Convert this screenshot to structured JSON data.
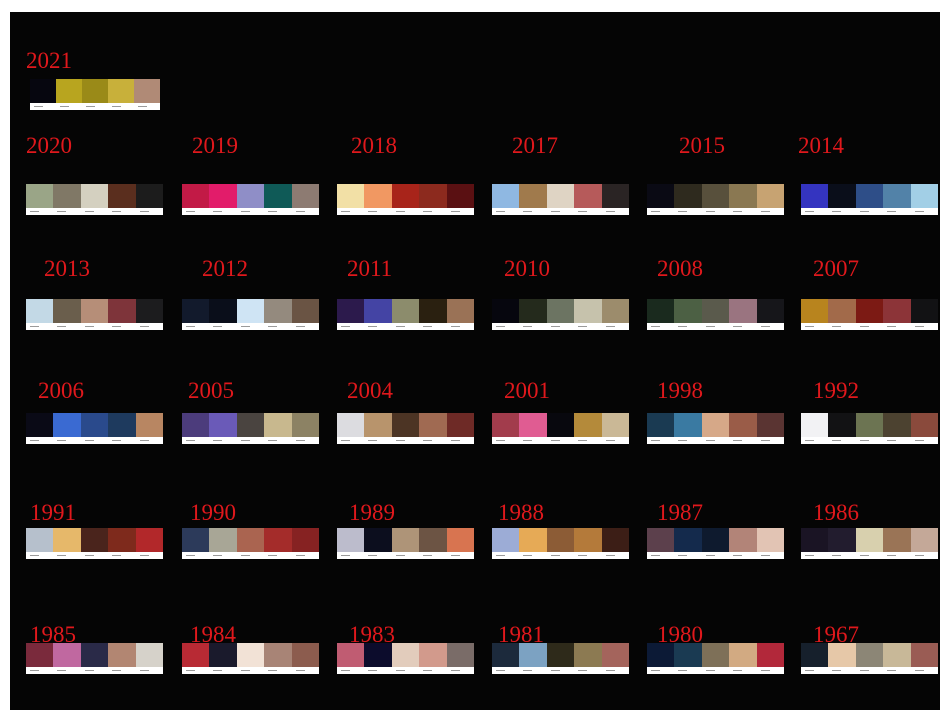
{
  "palettes": [
    {
      "year": "2021",
      "colors": [
        "#06060f",
        "#b8a51f",
        "#9a8a18",
        "#c8b03a",
        "#b08a76"
      ]
    },
    {
      "year": "2020",
      "colors": [
        "#9aa587",
        "#807866",
        "#d4d0c0",
        "#5a2e1e",
        "#1c1c1c"
      ]
    },
    {
      "year": "2019",
      "colors": [
        "#c21a46",
        "#e21c6a",
        "#8f8ec7",
        "#0f5a57",
        "#8d7b72"
      ]
    },
    {
      "year": "2018",
      "colors": [
        "#f2e0a6",
        "#f19862",
        "#a8241a",
        "#8c2a1e",
        "#5a1012"
      ]
    },
    {
      "year": "2017",
      "colors": [
        "#8fb8e2",
        "#a07a4c",
        "#dfd4c4",
        "#b65a5a",
        "#2a2424"
      ]
    },
    {
      "year": "2015",
      "colors": [
        "#0a0a14",
        "#2e2a1e",
        "#58503c",
        "#8a7852",
        "#c7a372"
      ]
    },
    {
      "year": "2014",
      "colors": [
        "#3434c0",
        "#0a0e1a",
        "#2e4e88",
        "#5282a8",
        "#a2cfe6"
      ]
    },
    {
      "year": "2013",
      "colors": [
        "#c3d9e6",
        "#6a5e4c",
        "#b68e78",
        "#7e343a",
        "#1c1c1e"
      ]
    },
    {
      "year": "2012",
      "colors": [
        "#121a2c",
        "#0a0e1a",
        "#cfe4f4",
        "#948a7e",
        "#6a5444"
      ]
    },
    {
      "year": "2011",
      "colors": [
        "#2c1a4c",
        "#4444a4",
        "#8c8c6c",
        "#2a2010",
        "#9a7256"
      ]
    },
    {
      "year": "2010",
      "colors": [
        "#06060e",
        "#242a1c",
        "#6c7462",
        "#c6c2ac",
        "#9c8c6c"
      ]
    },
    {
      "year": "2008",
      "colors": [
        "#1a2a1e",
        "#4c6044",
        "#5a5a4c",
        "#9a7480",
        "#16161a"
      ]
    },
    {
      "year": "2007",
      "colors": [
        "#b8841e",
        "#a26a4a",
        "#7c1a14",
        "#8c3438",
        "#121214"
      ]
    },
    {
      "year": "2006",
      "colors": [
        "#0a0a16",
        "#3a6ad2",
        "#2a4a8c",
        "#1e3a5e",
        "#b88662"
      ]
    },
    {
      "year": "2005",
      "colors": [
        "#4c3c7c",
        "#6a5ab8",
        "#4a4440",
        "#c8b88e",
        "#8c8264"
      ]
    },
    {
      "year": "2004",
      "colors": [
        "#dcdce0",
        "#b8946c",
        "#4c3424",
        "#a06a52",
        "#6e2a26"
      ]
    },
    {
      "year": "2001",
      "colors": [
        "#a23c4c",
        "#e05c92",
        "#08080e",
        "#b48a3a",
        "#cab896"
      ]
    },
    {
      "year": "1998",
      "colors": [
        "#1a3a52",
        "#3a7aa2",
        "#d6a888",
        "#9a5c48",
        "#5a3432"
      ]
    },
    {
      "year": "1992",
      "colors": [
        "#f2f2f4",
        "#121214",
        "#6c7452",
        "#4c4230",
        "#8a4a3c"
      ]
    },
    {
      "year": "1991",
      "colors": [
        "#b6c0cc",
        "#e6b86a",
        "#4a241c",
        "#7e2a1c",
        "#b2282a"
      ]
    },
    {
      "year": "1990",
      "colors": [
        "#2c3a5a",
        "#a8a696",
        "#aa6450",
        "#a42c2a",
        "#862222"
      ]
    },
    {
      "year": "1989",
      "colors": [
        "#bcbccc",
        "#0c0e1e",
        "#ae9478",
        "#6c5444",
        "#d87450"
      ]
    },
    {
      "year": "1988",
      "colors": [
        "#9cacd6",
        "#e6aa56",
        "#8c5c36",
        "#b47a3a",
        "#3c1e16"
      ]
    },
    {
      "year": "1987",
      "colors": [
        "#5c404c",
        "#142a4c",
        "#0e1a2e",
        "#b28478",
        "#e2c4b4"
      ]
    },
    {
      "year": "1986",
      "colors": [
        "#1a1424",
        "#221c2e",
        "#d8d0ae",
        "#9a7456",
        "#c4a898"
      ]
    },
    {
      "year": "1985",
      "colors": [
        "#7a2a3c",
        "#c068a0",
        "#2a2a48",
        "#b28672",
        "#d6d2ca"
      ]
    },
    {
      "year": "1984",
      "colors": [
        "#b82a34",
        "#1a1a2c",
        "#f2e2d6",
        "#a88476",
        "#8c5c4e"
      ]
    },
    {
      "year": "1983",
      "colors": [
        "#c05c72",
        "#0c0c2c",
        "#e2ccbc",
        "#d29a8c",
        "#7a6c68"
      ]
    },
    {
      "year": "1981",
      "colors": [
        "#1c2a3c",
        "#7ca2c2",
        "#2e2a1a",
        "#8c7a52",
        "#a4645c"
      ]
    },
    {
      "year": "1980",
      "colors": [
        "#0c1a36",
        "#1a3a52",
        "#7e7058",
        "#d2aa82",
        "#b2283a"
      ]
    },
    {
      "year": "1967",
      "colors": [
        "#16202c",
        "#e6c8a8",
        "#8c8676",
        "#c8b898",
        "#9a5c54"
      ]
    }
  ]
}
